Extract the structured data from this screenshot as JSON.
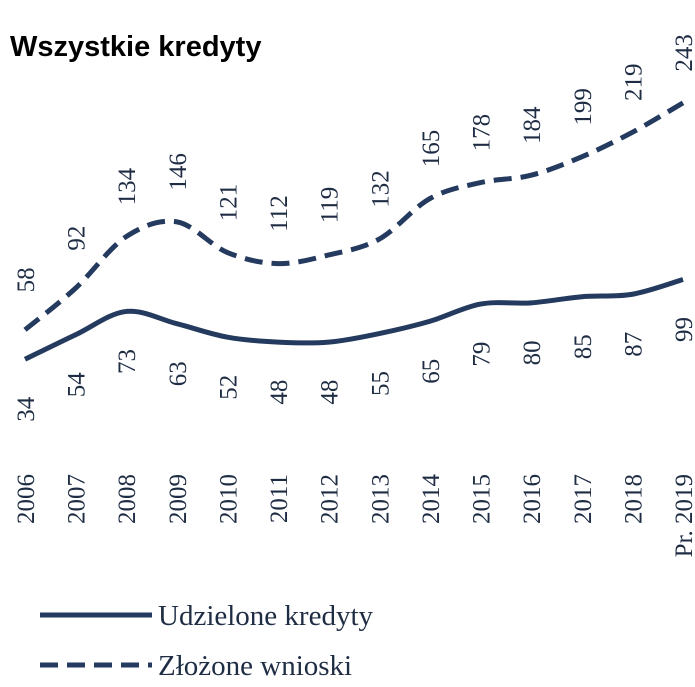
{
  "chart_data": {
    "type": "line",
    "title": "Wszystkie kredyty",
    "categories": [
      "2006",
      "2007",
      "2008",
      "2009",
      "2010",
      "2011",
      "2012",
      "2013",
      "2014",
      "2015",
      "2016",
      "2017",
      "2018",
      "Pr. 2019"
    ],
    "series": [
      {
        "name": "Udzielone kredyty",
        "color": "#243a5e",
        "values": [
          34,
          54,
          73,
          63,
          52,
          48,
          48,
          55,
          65,
          79,
          80,
          85,
          87,
          99
        ]
      },
      {
        "name": "Złożone wnioski",
        "color": "#243a5e",
        "values": [
          58,
          92,
          134,
          146,
          121,
          112,
          119,
          132,
          165,
          178,
          184,
          199,
          219,
          243
        ]
      }
    ]
  }
}
